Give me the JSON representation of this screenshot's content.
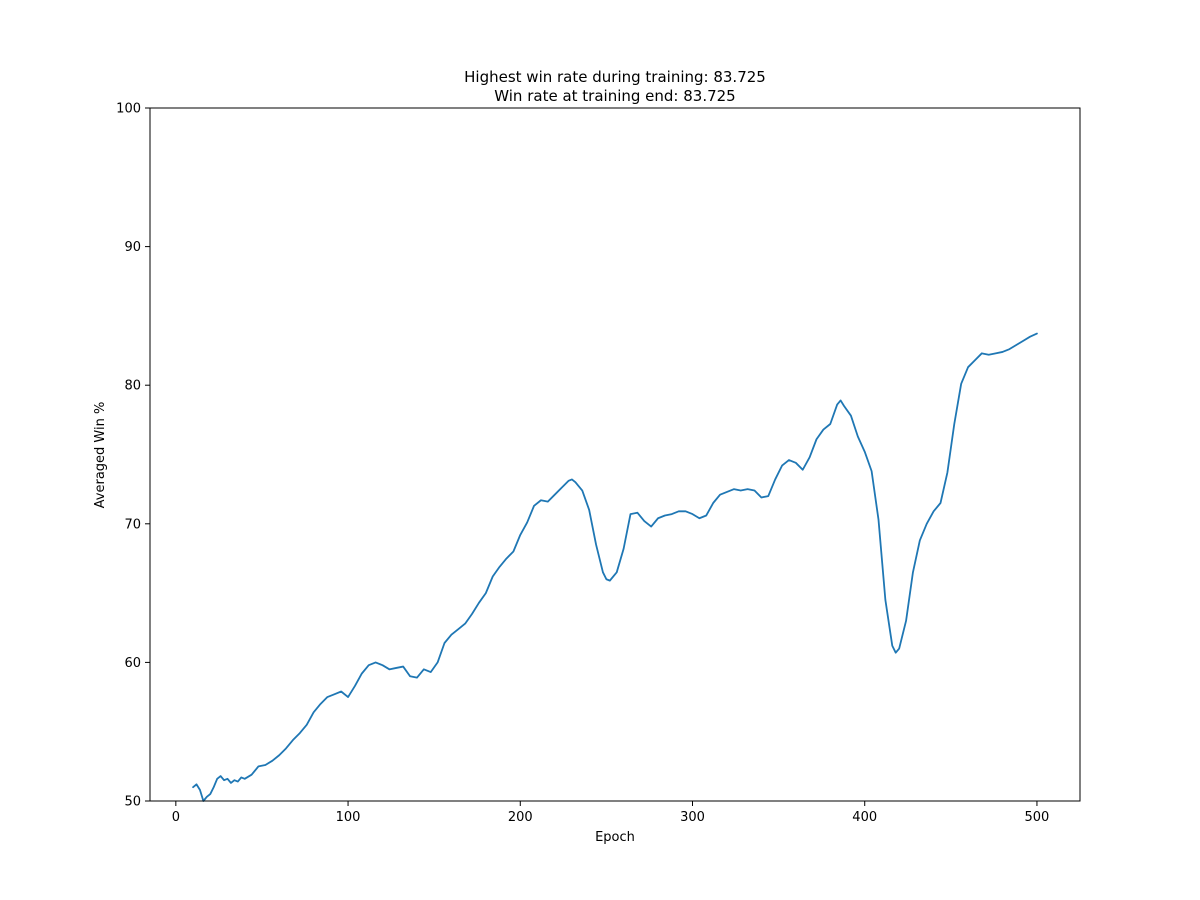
{
  "chart_data": {
    "type": "line",
    "title_lines": [
      "Highest win rate during training: 83.725",
      "Win rate at training end: 83.725"
    ],
    "xlabel": "Epoch",
    "ylabel": "Averaged Win %",
    "xlim": [
      -15,
      525
    ],
    "ylim": [
      50,
      100
    ],
    "x_ticks": [
      0,
      100,
      200,
      300,
      400,
      500
    ],
    "y_ticks": [
      50,
      60,
      70,
      80,
      90,
      100
    ],
    "x_tick_labels": [
      "0",
      "100",
      "200",
      "300",
      "400",
      "500"
    ],
    "y_tick_labels": [
      "50",
      "60",
      "70",
      "80",
      "90",
      "100"
    ],
    "grid": false,
    "line_color": "#1f77b4",
    "series": [
      {
        "x": [
          10,
          12,
          14,
          16,
          18,
          20,
          22,
          24,
          26,
          28,
          30,
          32,
          34,
          36,
          38,
          40,
          44,
          48,
          52,
          56,
          60,
          64,
          68,
          72,
          76,
          80,
          84,
          88,
          92,
          96,
          100,
          104,
          108,
          112,
          116,
          120,
          124,
          128,
          132,
          136,
          140,
          144,
          148,
          152,
          156,
          160,
          164,
          168,
          172,
          176,
          180,
          184,
          188,
          192,
          196,
          200,
          204,
          208,
          212,
          216,
          220,
          224,
          228,
          230,
          232,
          236,
          240,
          244,
          248,
          250,
          252,
          256,
          260,
          264,
          268,
          272,
          276,
          280,
          284,
          288,
          292,
          296,
          300,
          304,
          308,
          312,
          316,
          320,
          324,
          328,
          332,
          336,
          340,
          344,
          348,
          352,
          356,
          360,
          364,
          368,
          372,
          376,
          380,
          384,
          386,
          388,
          392,
          396,
          400,
          404,
          408,
          412,
          416,
          418,
          420,
          424,
          428,
          432,
          436,
          440,
          444,
          448,
          452,
          456,
          460,
          464,
          468,
          472,
          476,
          480,
          484,
          488,
          492,
          496,
          500
        ],
        "y": [
          51.0,
          51.2,
          50.8,
          50.0,
          50.3,
          50.5,
          51.0,
          51.6,
          51.8,
          51.5,
          51.6,
          51.3,
          51.5,
          51.4,
          51.7,
          51.6,
          51.9,
          52.5,
          52.6,
          52.9,
          53.3,
          53.8,
          54.4,
          54.9,
          55.5,
          56.4,
          57.0,
          57.5,
          57.7,
          57.9,
          57.5,
          58.3,
          59.2,
          59.8,
          60.0,
          59.8,
          59.5,
          59.6,
          59.7,
          59.0,
          58.9,
          59.5,
          59.3,
          60.0,
          61.4,
          62.0,
          62.4,
          62.8,
          63.5,
          64.3,
          65.0,
          66.2,
          66.9,
          67.5,
          68.0,
          69.2,
          70.1,
          71.3,
          71.7,
          71.6,
          72.1,
          72.6,
          73.1,
          73.2,
          73.0,
          72.4,
          71.0,
          68.5,
          66.5,
          66.0,
          65.9,
          66.5,
          68.2,
          70.7,
          70.8,
          70.2,
          69.8,
          70.4,
          70.6,
          70.7,
          70.9,
          70.9,
          70.7,
          70.4,
          70.6,
          71.5,
          72.1,
          72.3,
          72.5,
          72.4,
          72.5,
          72.4,
          71.9,
          72.0,
          73.2,
          74.2,
          74.6,
          74.4,
          73.9,
          74.8,
          76.1,
          76.8,
          77.2,
          78.6,
          78.9,
          78.5,
          77.8,
          76.3,
          75.2,
          73.8,
          70.3,
          64.5,
          61.2,
          60.7,
          61.0,
          63.0,
          66.5,
          68.8,
          70.0,
          70.9,
          71.5,
          73.7,
          77.2,
          80.1,
          81.3,
          81.8,
          82.3,
          82.2,
          82.3,
          82.4,
          82.6,
          82.9,
          83.2,
          83.5,
          83.725
        ]
      }
    ]
  }
}
